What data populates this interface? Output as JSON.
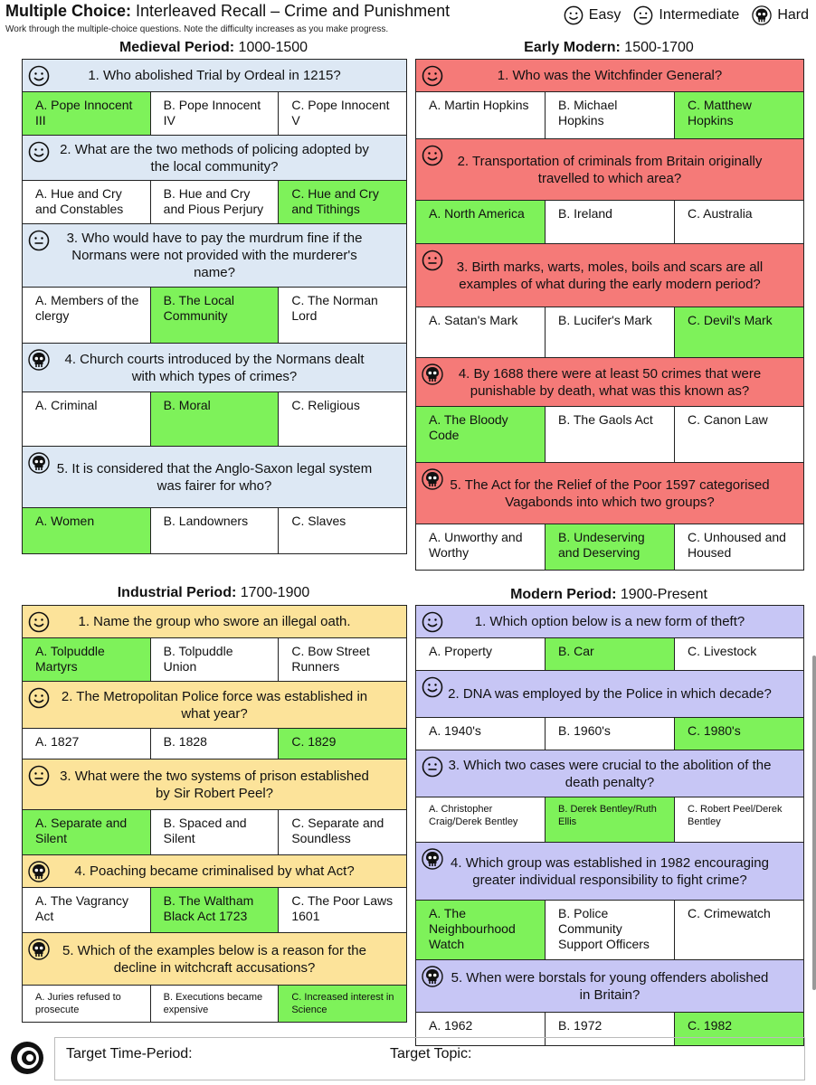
{
  "header": {
    "title_bold": "Multiple Choice:",
    "title_rest": " Interleaved Recall – Crime and Punishment",
    "subtitle": "Work through the multiple-choice questions. Note the difficulty increases as you make progress.",
    "legend": [
      {
        "icon": "easy-face-icon",
        "label": "Easy"
      },
      {
        "icon": "intermediate-face-icon",
        "label": "Intermediate"
      },
      {
        "icon": "skull-icon",
        "label": "Hard"
      }
    ]
  },
  "sections": [
    {
      "name_bold": "Medieval Period:",
      "name_rest": " 1000-1500",
      "color": "#dde8f4",
      "questions": [
        {
          "difficulty": "easy",
          "text": "1. Who abolished Trial by Ordeal in 1215?",
          "options": [
            "A. Pope Innocent III",
            "B. Pope Innocent IV",
            "C. Pope Innocent V"
          ],
          "correct": 0
        },
        {
          "difficulty": "easy",
          "text": "2. What are the two methods of policing adopted by the local community?",
          "options": [
            "A. Hue and Cry and Constables",
            "B. Hue and Cry and Pious Perjury",
            "C. Hue and Cry and Tithings"
          ],
          "correct": 2
        },
        {
          "difficulty": "intermediate",
          "text": "3. Who would have to pay the murdrum fine if the Normans were not provided with the murderer's name?",
          "options": [
            "A. Members of the clergy",
            "B. The Local Community",
            "C. The Norman Lord"
          ],
          "correct": 1
        },
        {
          "difficulty": "hard",
          "text": "4. Church courts introduced by the Normans dealt with which types of crimes?",
          "options": [
            "A. Criminal",
            "B. Moral",
            "C. Religious"
          ],
          "correct": 1
        },
        {
          "difficulty": "hard",
          "text": "5. It is considered that the Anglo-Saxon legal system was fairer for who?",
          "options": [
            "A. Women",
            "B. Landowners",
            "C. Slaves"
          ],
          "correct": 0
        }
      ]
    },
    {
      "name_bold": "Early Modern:",
      "name_rest": " 1500-1700",
      "color": "#f57a78",
      "questions": [
        {
          "difficulty": "easy",
          "text": "1. Who was the Witchfinder General?",
          "options": [
            "A. Martin Hopkins",
            "B. Michael Hopkins",
            "C. Matthew Hopkins"
          ],
          "correct": 2
        },
        {
          "difficulty": "easy",
          "text": "2. Transportation of criminals from Britain originally travelled to which area?",
          "options": [
            "A. North America",
            "B. Ireland",
            "C. Australia"
          ],
          "correct": 0
        },
        {
          "difficulty": "intermediate",
          "text": "3. Birth marks, warts, moles, boils and scars are all examples of what during the early modern period?",
          "options": [
            "A. Satan's Mark",
            "B. Lucifer's Mark",
            "C. Devil's Mark"
          ],
          "correct": 2
        },
        {
          "difficulty": "hard",
          "text": "4. By 1688 there were at least 50 crimes that were punishable by death, what was this known as?",
          "options": [
            "A. The Bloody Code",
            "B. The Gaols Act",
            "C. Canon Law"
          ],
          "correct": 0
        },
        {
          "difficulty": "hard",
          "text": "5. The Act for the Relief of the Poor 1597 categorised Vagabonds into which two groups?",
          "options": [
            "A. Unworthy and Worthy",
            "B. Undeserving and Deserving",
            "C. Unhoused and Housed"
          ],
          "correct": 1
        }
      ]
    },
    {
      "name_bold": "Industrial Period:",
      "name_rest": " 1700-1900",
      "color": "#fce39a",
      "questions": [
        {
          "difficulty": "easy",
          "text": "1. Name the group who swore an illegal oath.",
          "options": [
            "A. Tolpuddle Martyrs",
            "B. Tolpuddle Union",
            "C. Bow Street Runners"
          ],
          "correct": 0
        },
        {
          "difficulty": "easy",
          "text": "2. The Metropolitan Police force was established in what year?",
          "options": [
            "A. 1827",
            "B. 1828",
            "C. 1829"
          ],
          "correct": 2
        },
        {
          "difficulty": "intermediate",
          "text": "3. What were the two systems of prison established by Sir Robert Peel?",
          "options": [
            "A. Separate and Silent",
            "B. Spaced and Silent",
            "C. Separate and Soundless"
          ],
          "correct": 0
        },
        {
          "difficulty": "hard",
          "text": "4. Poaching became criminalised by what Act?",
          "options": [
            "A. The Vagrancy Act",
            "B. The Waltham Black Act 1723",
            "C. The Poor Laws 1601"
          ],
          "correct": 1
        },
        {
          "difficulty": "hard",
          "text": "5. Which of the examples below is a reason for the decline in witchcraft accusations?",
          "options": [
            "A. Juries refused to prosecute",
            "B. Executions became expensive",
            "C. Increased interest in Science"
          ],
          "correct": 2
        }
      ]
    },
    {
      "name_bold": "Modern Period:",
      "name_rest": " 1900-Present",
      "color": "#c7c6f5",
      "questions": [
        {
          "difficulty": "easy",
          "text": "1. Which option below is a new form of theft?",
          "options": [
            "A. Property",
            "B. Car",
            "C. Livestock"
          ],
          "correct": 1
        },
        {
          "difficulty": "easy",
          "text": "2. DNA was employed by the Police in which decade?",
          "options": [
            "A. 1940's",
            "B. 1960's",
            "C. 1980's"
          ],
          "correct": 2
        },
        {
          "difficulty": "intermediate",
          "text": "3. Which two cases were crucial to the abolition of the death penalty?",
          "options": [
            "A. Christopher Craig/Derek Bentley",
            "B. Derek Bentley/Ruth Ellis",
            "C. Robert Peel/Derek Bentley"
          ],
          "correct": 1
        },
        {
          "difficulty": "hard",
          "text": "4. Which group was established in 1982 encouraging greater individual responsibility to fight crime?",
          "options": [
            "A. The Neighbourhood Watch",
            "B. Police Community Support Officers",
            "C. Crimewatch"
          ],
          "correct": 0
        },
        {
          "difficulty": "hard",
          "text": "5. When were borstals for young offenders abolished in Britain?",
          "options": [
            "A. 1962",
            "B. 1972",
            "C. 1982"
          ],
          "correct": 2
        }
      ]
    }
  ],
  "footer": {
    "target_time": "Target Time-Period:",
    "target_topic": "Target Topic:"
  }
}
